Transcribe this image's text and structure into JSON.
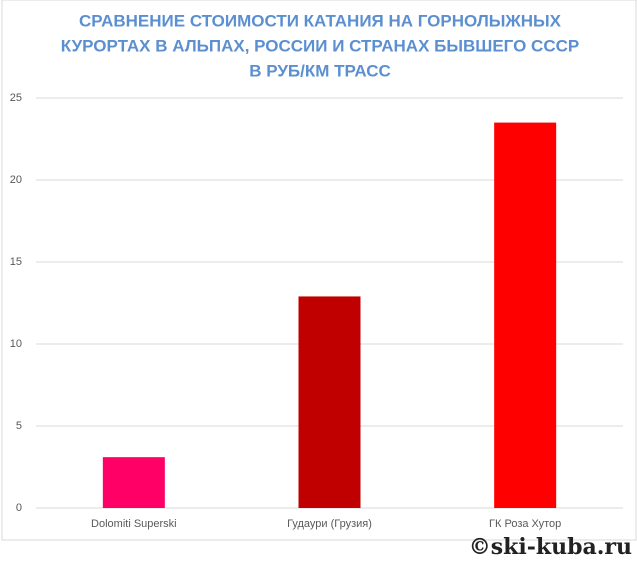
{
  "chart_data": {
    "type": "bar",
    "title": [
      "СРАВНЕНИЕ СТОИМОСТИ КАТАНИЯ НА ГОРНОЛЫЖНЫХ",
      "КУРОРТАХ В АЛЬПАХ, РОССИИ И СТРАНАХ БЫВШЕГО СССР",
      "В РУБ/КМ ТРАСС"
    ],
    "categories": [
      "Dolomiti Superski",
      "Гудаури (Грузия)",
      "ГК Роза Хутор"
    ],
    "values": [
      3.1,
      12.9,
      23.5
    ],
    "colors": [
      "#ff0066",
      "#c00000",
      "#ff0000"
    ],
    "ylim": [
      0,
      25
    ],
    "yticks": [
      0,
      5,
      10,
      15,
      20,
      25
    ],
    "grid": true,
    "watermark": "©ski-kuba.ru"
  }
}
